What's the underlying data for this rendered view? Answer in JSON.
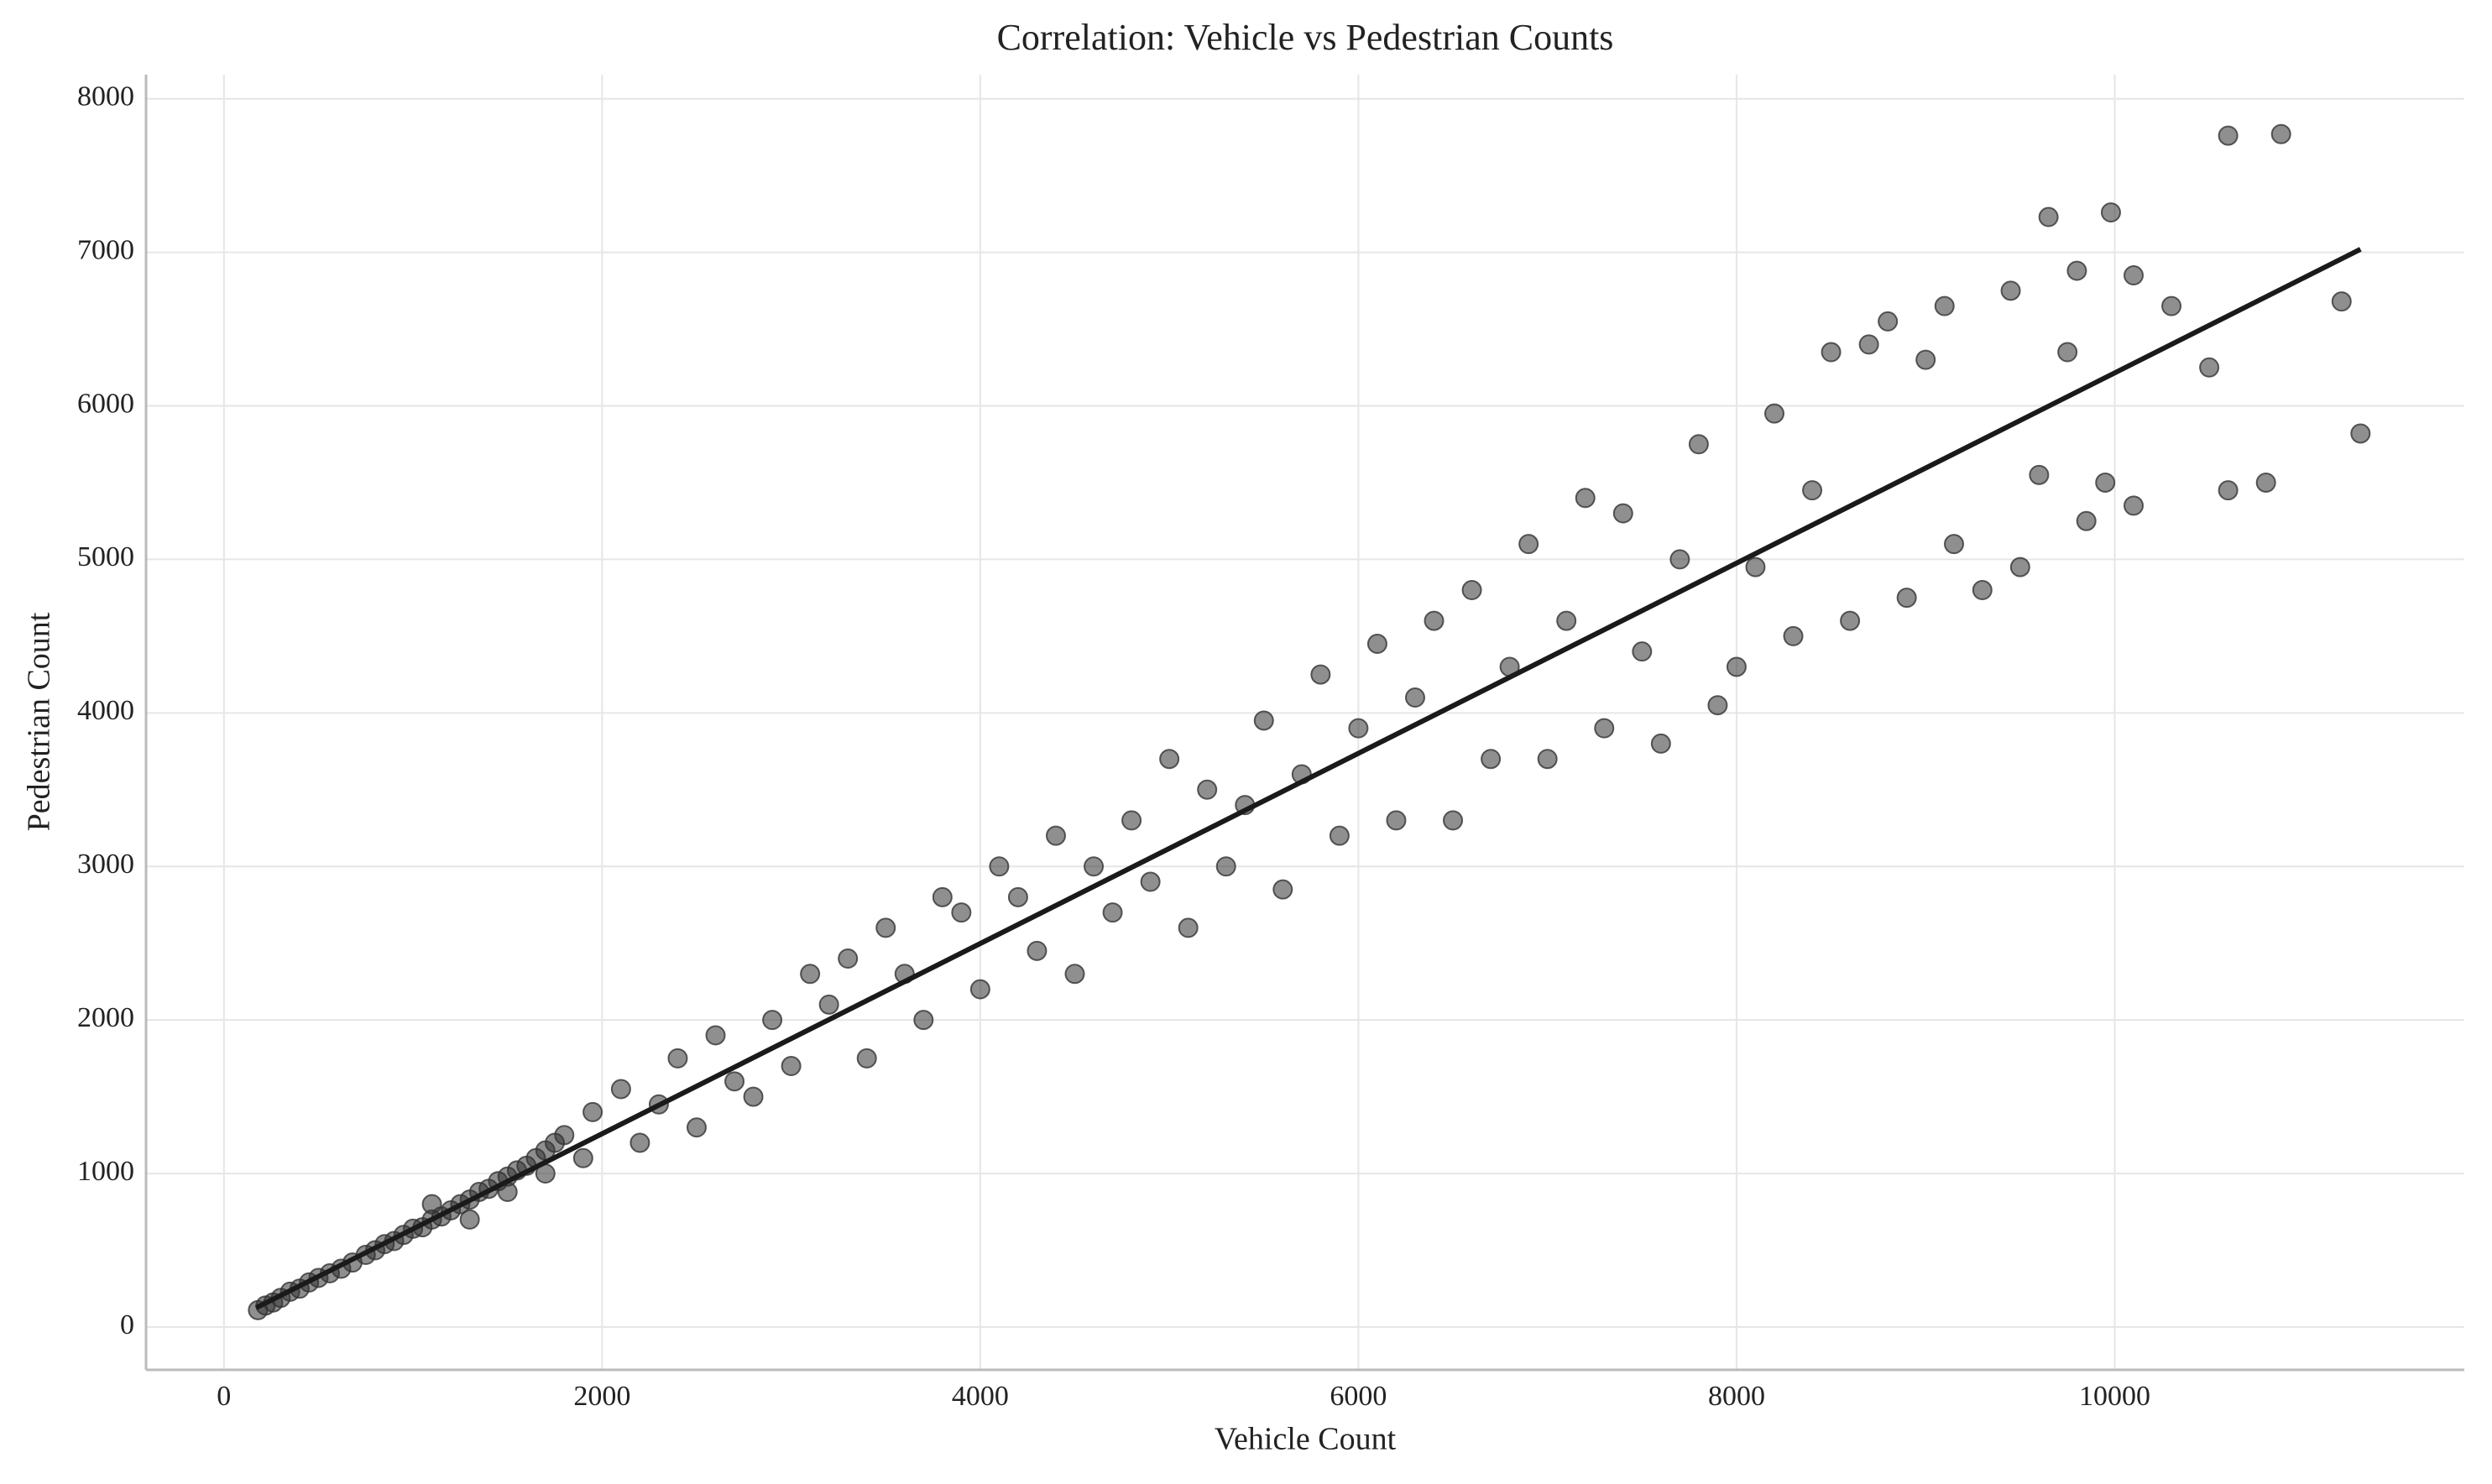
{
  "chart_data": {
    "type": "scatter",
    "title": "Correlation: Vehicle vs Pedestrian Counts",
    "x_label": "Vehicle Count",
    "y_label": "Pedestrian Count",
    "x": [
      180,
      220,
      260,
      300,
      350,
      400,
      450,
      500,
      560,
      620,
      680,
      750,
      800,
      850,
      900,
      950,
      1000,
      1050,
      1100,
      1150,
      1200,
      1250,
      1300,
      1350,
      1400,
      1450,
      1500,
      1550,
      1600,
      1650,
      1700,
      1750,
      1800,
      1100,
      1300,
      1500,
      1700,
      1900,
      1950,
      2100,
      2200,
      2300,
      2400,
      2500,
      2600,
      2700,
      2800,
      2900,
      3000,
      3100,
      3200,
      3300,
      3400,
      3500,
      3600,
      3700,
      3800,
      3900,
      4000,
      4100,
      4200,
      4300,
      4400,
      4500,
      4600,
      4700,
      4800,
      4900,
      5000,
      5100,
      5200,
      5300,
      5400,
      5500,
      5600,
      5700,
      5800,
      5900,
      6000,
      6100,
      6200,
      6300,
      6400,
      6500,
      6600,
      6700,
      6800,
      6900,
      7000,
      7100,
      7200,
      7300,
      7400,
      7500,
      7600,
      7700,
      7800,
      7900,
      8000,
      8100,
      8200,
      8300,
      8400,
      8500,
      8600,
      8700,
      8800,
      8900,
      9000,
      9100,
      9150,
      9300,
      9450,
      9500,
      9600,
      9650,
      9750,
      9800,
      9850,
      9950,
      9980,
      10100,
      10100,
      10300,
      10500,
      10600,
      10600,
      10800,
      10880,
      11200,
      11300
    ],
    "y": [
      110,
      140,
      160,
      190,
      230,
      250,
      290,
      320,
      350,
      380,
      420,
      470,
      500,
      540,
      560,
      600,
      640,
      650,
      700,
      720,
      760,
      800,
      830,
      880,
      900,
      950,
      980,
      1020,
      1050,
      1100,
      1150,
      1200,
      1250,
      800,
      700,
      880,
      1000,
      1100,
      1400,
      1550,
      1200,
      1450,
      1750,
      1300,
      1900,
      1600,
      1500,
      2000,
      1700,
      2300,
      2100,
      2400,
      1750,
      2600,
      2300,
      2000,
      2800,
      2700,
      2200,
      3000,
      2800,
      2450,
      3200,
      2300,
      3000,
      2700,
      3300,
      2900,
      3700,
      2600,
      3500,
      3000,
      3400,
      3950,
      2850,
      3600,
      4250,
      3200,
      3900,
      4450,
      3300,
      4100,
      4600,
      3300,
      4800,
      3700,
      4300,
      5100,
      3700,
      4600,
      5400,
      3900,
      5300,
      4400,
      3800,
      5000,
      5750,
      4050,
      4300,
      4950,
      5950,
      4500,
      5450,
      6350,
      4600,
      6400,
      6550,
      4750,
      6300,
      6650,
      5100,
      4800,
      6750,
      4950,
      5550,
      7230,
      6350,
      6880,
      5250,
      5500,
      7260,
      5350,
      6850,
      6650,
      6250,
      5450,
      7760,
      5500,
      7770,
      6680,
      5820
    ],
    "color": "#333333",
    "trend_line": {
      "x": [
        170,
        11300
      ],
      "y": [
        125,
        7020
      ],
      "color": "#1a1a1a"
    },
    "xlim": [
      -412,
      11849
    ],
    "ylim": [
      -279,
      8157
    ],
    "xticks": [
      0,
      2000,
      4000,
      6000,
      8000,
      10000
    ],
    "yticks": [
      0,
      1000,
      2000,
      3000,
      4000,
      5000,
      6000,
      7000,
      8000
    ],
    "grid": true
  }
}
